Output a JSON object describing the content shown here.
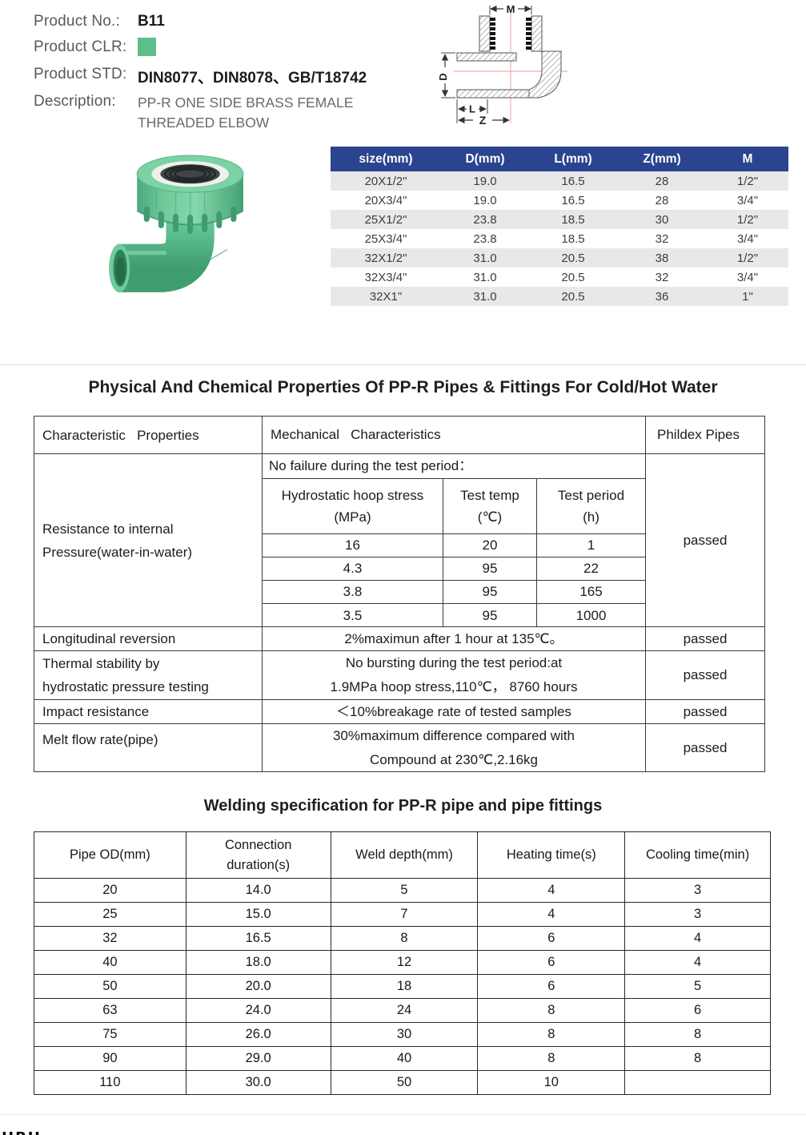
{
  "page": {
    "accent_navy": "#2b4490",
    "product_green": "#5dbd8b"
  },
  "product_info": {
    "no_label": "Product No.:",
    "no_value": "B11",
    "clr_label": "Product CLR:",
    "std_label": "Product STD:",
    "std_value": "DIN8077、DIN8078、GB/T18742",
    "desc_label": "Description:",
    "desc_value": "PP-R ONE SIDE BRASS FEMALE\nTHREADED ELBOW"
  },
  "drawing": {
    "dim_m": "M",
    "dim_d": "D",
    "dim_l": "L",
    "dim_z": "Z"
  },
  "size_table": {
    "columns": [
      "size(mm)",
      "D(mm)",
      "L(mm)",
      "Z(mm)",
      "M"
    ],
    "rows": [
      [
        "20X1/2\"",
        "19.0",
        "16.5",
        "28",
        "1/2\""
      ],
      [
        "20X3/4\"",
        "19.0",
        "16.5",
        "28",
        "3/4\""
      ],
      [
        "25X1/2\"",
        "23.8",
        "18.5",
        "30",
        "1/2\""
      ],
      [
        "25X3/4\"",
        "23.8",
        "18.5",
        "32",
        "3/4\""
      ],
      [
        "32X1/2\"",
        "31.0",
        "20.5",
        "38",
        "1/2\""
      ],
      [
        "32X3/4\"",
        "31.0",
        "20.5",
        "32",
        "3/4\""
      ],
      [
        "32X1\"",
        "31.0",
        "20.5",
        "36",
        "1\""
      ]
    ]
  },
  "properties": {
    "title": "Physical And Chemical Properties Of PP-R Pipes & Fittings For Cold/Hot Water",
    "header": {
      "col1": "Characteristic   Properties",
      "col2": "Mechanical   Characteristics",
      "col3": "Phildex Pipes"
    },
    "resistance": {
      "name": "Resistance to internal\nPressure(water-in-water)",
      "no_failure": "No failure during the test period：",
      "sub_columns": [
        "Hydrostatic hoop stress\n(MPa)",
        "Test temp\n(℃)",
        "Test period\n(h)"
      ],
      "sub_rows": [
        [
          "16",
          "20",
          "1"
        ],
        [
          "4.3",
          "95",
          "22"
        ],
        [
          "3.8",
          "95",
          "165"
        ],
        [
          "3.5",
          "95",
          "1000"
        ]
      ],
      "result": "passed"
    },
    "row_longitudinal": {
      "name": "Longitudinal reversion",
      "desc": "2%maximun after 1 hour at 135℃。",
      "result": "passed"
    },
    "row_thermal": {
      "name": "Thermal stability by\nhydrostatic pressure testing",
      "desc": "No bursting during the test period:at\n1.9MPa hoop stress,110℃， 8760 hours",
      "result": "passed"
    },
    "row_impact": {
      "name": "Impact resistance",
      "desc": "＜10%breakage rate of tested samples",
      "result": "passed"
    },
    "row_melt": {
      "name": "Melt flow rate(pipe)",
      "desc": "30%maximum difference compared with\nCompound at 230℃,2.16kg",
      "result": "passed"
    }
  },
  "welding": {
    "title": "Welding specification for PP-R pipe and pipe fittings",
    "columns": [
      "Pipe OD(mm)",
      "Connection\nduration(s)",
      "Weld depth(mm)",
      "Heating time(s)",
      "Cooling time(min)"
    ],
    "rows": [
      [
        "20",
        "14.0",
        "5",
        "4",
        "3"
      ],
      [
        "25",
        "15.0",
        "7",
        "4",
        "3"
      ],
      [
        "32",
        "16.5",
        "8",
        "6",
        "4"
      ],
      [
        "40",
        "18.0",
        "12",
        "6",
        "4"
      ],
      [
        "50",
        "20.0",
        "18",
        "6",
        "5"
      ],
      [
        "63",
        "24.0",
        "24",
        "8",
        "6"
      ],
      [
        "75",
        "26.0",
        "30",
        "8",
        "8"
      ],
      [
        "90",
        "29.0",
        "40",
        "8",
        "8"
      ],
      [
        "110",
        "30.0",
        "50",
        "10",
        ""
      ]
    ]
  },
  "footer": {
    "logo_fragment": "HBH"
  }
}
